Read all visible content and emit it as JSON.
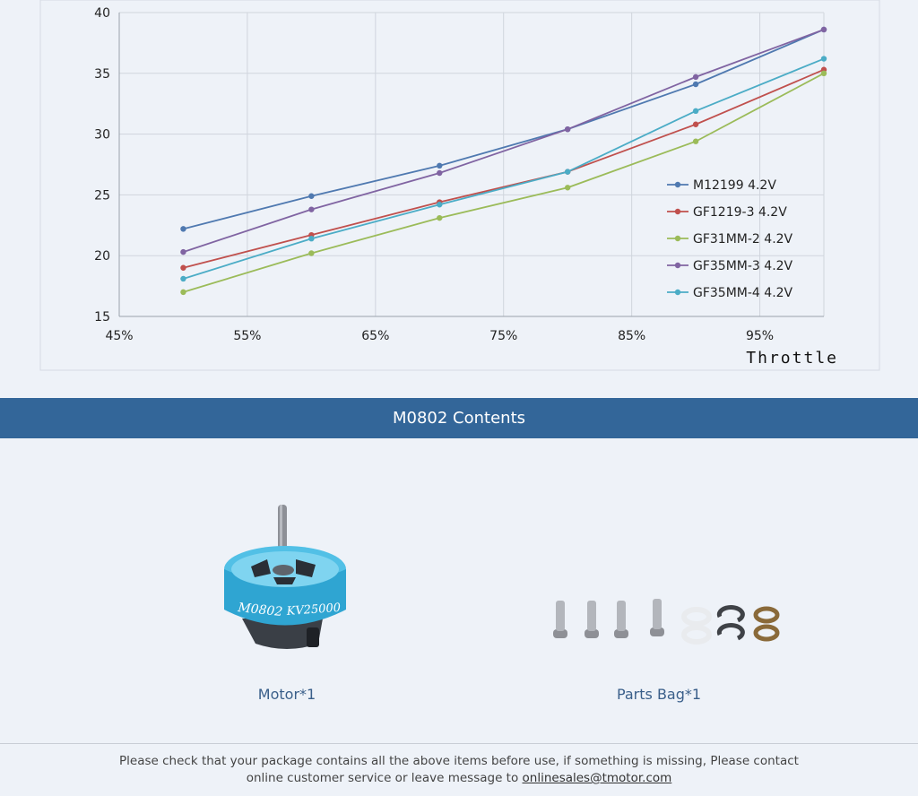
{
  "chart_data": {
    "type": "line",
    "xlabel": "Throttle",
    "ylabel": "",
    "x": [
      50,
      60,
      70,
      80,
      90,
      100
    ],
    "xlim": [
      45,
      100
    ],
    "ylim": [
      15,
      40
    ],
    "xticks": [
      45,
      55,
      65,
      75,
      85,
      95
    ],
    "xtick_labels": [
      "45%",
      "55%",
      "65%",
      "75%",
      "85%",
      "95%"
    ],
    "yticks": [
      15,
      20,
      25,
      30,
      35,
      40
    ],
    "ytick_labels": [
      "15",
      "20",
      "25",
      "30",
      "35",
      "40"
    ],
    "grid": true,
    "legend": "right-center",
    "series": [
      {
        "name": "M12199 4.2V",
        "color": "#4f79b0",
        "values": [
          22.2,
          24.9,
          27.4,
          30.4,
          34.1,
          38.6
        ]
      },
      {
        "name": "GF1219-3 4.2V",
        "color": "#c0504d",
        "values": [
          19.0,
          21.7,
          24.4,
          26.9,
          30.8,
          35.3
        ]
      },
      {
        "name": "GF31MM-2 4.2V",
        "color": "#9bbb59",
        "values": [
          17.0,
          20.2,
          23.1,
          25.6,
          29.4,
          35.0
        ]
      },
      {
        "name": "GF35MM-3 4.2V",
        "color": "#8064a2",
        "values": [
          20.3,
          23.8,
          26.8,
          30.4,
          34.7,
          38.6
        ]
      },
      {
        "name": "GF35MM-4 4.2V",
        "color": "#4bacc6",
        "values": [
          18.1,
          21.4,
          24.2,
          26.9,
          31.9,
          36.2
        ]
      }
    ]
  },
  "contents": {
    "title": "M0802 Contents",
    "items": [
      {
        "label": "Motor*1",
        "icon": "motor-icon"
      },
      {
        "label": "Parts Bag*1",
        "icon": "parts-bag-icon"
      }
    ]
  },
  "footer": {
    "text": "Please check that your package contains all the above items before use, if something is missing, Please contact online customer service or leave message to",
    "email": "onlinesales@tmotor.com"
  }
}
